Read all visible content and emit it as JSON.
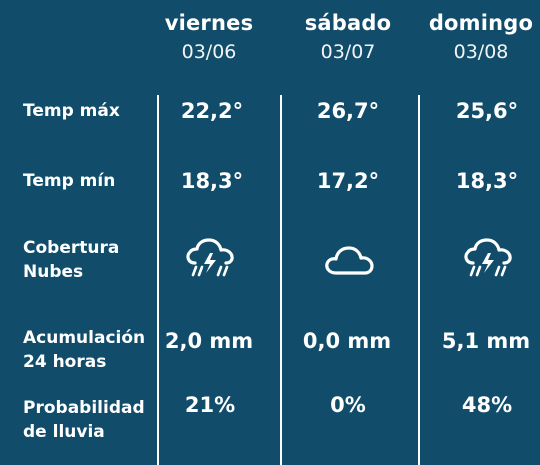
{
  "days": [
    {
      "name": "viernes",
      "date": "03/06",
      "temp_max": "22,2°",
      "temp_min": "18,3°",
      "cloud_icon": "thunderstorm-rain-icon",
      "accumulation": "2,0 mm",
      "rain_probability": "21%"
    },
    {
      "name": "sábado",
      "date": "03/07",
      "temp_max": "26,7°",
      "temp_min": "17,2°",
      "cloud_icon": "cloud-icon",
      "accumulation": "0,0 mm",
      "rain_probability": "0%"
    },
    {
      "name": "domingo",
      "date": "03/08",
      "temp_max": "25,6°",
      "temp_min": "18,3°",
      "cloud_icon": "thunderstorm-rain-icon",
      "accumulation": "5,1 mm",
      "rain_probability": "48%"
    }
  ],
  "labels": {
    "temp_max": "Temp máx",
    "temp_min": "Temp mín",
    "cloud_cover_1": "Cobertura",
    "cloud_cover_2": "Nubes",
    "accumulation_1": "Acumulación",
    "accumulation_2": "24 horas",
    "rain_prob_1": "Probabilidad",
    "rain_prob_2": "de lluvia"
  },
  "colors": {
    "background": "#114d6a",
    "foreground": "#ffffff"
  }
}
